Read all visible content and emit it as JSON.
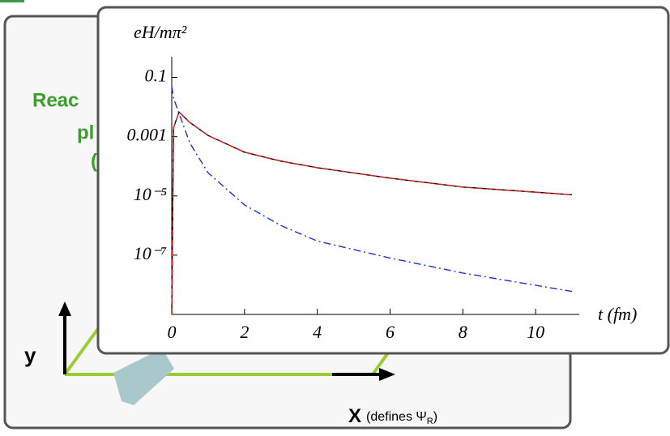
{
  "slide": {
    "title_part": "Reac",
    "subtitle_part": "pl",
    "paren_part": "(",
    "y_label": "y",
    "x_label": "X",
    "x_note": "(defines Ψ",
    "x_sub": "R",
    "x_close": ")"
  },
  "chart_data": {
    "type": "line",
    "y_label": "eH/mπ²",
    "x_label": "t (fm)",
    "x": [
      0,
      0.05,
      0.2,
      0.5,
      1,
      2,
      3,
      4,
      6,
      8,
      11
    ],
    "series": [
      {
        "color": "#000000",
        "dash": "solid",
        "values": [
          1e-09,
          0.002,
          0.0068,
          0.003,
          0.0011,
          0.0003,
          0.00015,
          9e-05,
          4e-05,
          2e-05,
          1.1e-05
        ]
      },
      {
        "color": "#e02020",
        "dash": "dashed",
        "values": [
          1e-09,
          0.002,
          0.0068,
          0.003,
          0.0011,
          0.0003,
          0.00015,
          9e-05,
          4e-05,
          2e-05,
          1.1e-05
        ]
      },
      {
        "color": "#2030d0",
        "dash": "dashdot",
        "values": [
          0.05,
          0.02,
          0.006,
          0.0006,
          6e-05,
          5e-06,
          1e-06,
          3e-07,
          8e-08,
          2.5e-08,
          6e-09
        ]
      }
    ],
    "xlim": [
      0,
      11.2
    ],
    "ylim": [
      1e-09,
      0.5
    ],
    "ylog": true,
    "xticks": [
      0,
      2,
      4,
      6,
      8,
      10
    ],
    "yticks": [
      {
        "value": 0.1,
        "label": "0.1"
      },
      {
        "value": 0.001,
        "label": "0.001"
      },
      {
        "value": 1e-05,
        "label": "10⁻⁵"
      },
      {
        "value": 1e-07,
        "label": "10⁻⁷"
      }
    ]
  }
}
